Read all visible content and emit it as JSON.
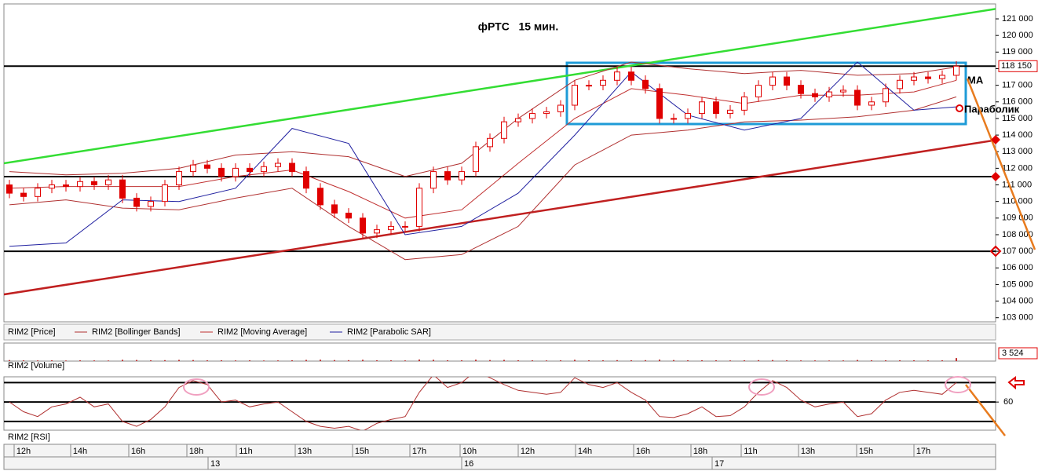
{
  "chart_data": {
    "type": "candlestick",
    "title": "фРТС   15 мин.",
    "annotations": [
      "МА",
      "Параболик"
    ],
    "ylim": [
      102750,
      121900
    ],
    "yticks": [
      {
        "value": 103000,
        "label": "103 000"
      },
      {
        "value": 104000,
        "label": "104 000"
      },
      {
        "value": 105000,
        "label": "105 000"
      },
      {
        "value": 106000,
        "label": "106 000"
      },
      {
        "value": 107000,
        "label": "107 000"
      },
      {
        "value": 108000,
        "label": "108 000"
      },
      {
        "value": 109000,
        "label": "109 000"
      },
      {
        "value": 110000,
        "label": "110 000"
      },
      {
        "value": 111000,
        "label": "111 000"
      },
      {
        "value": 112000,
        "label": "112 000"
      },
      {
        "value": 113000,
        "label": "113 000"
      },
      {
        "value": 114000,
        "label": "114 000"
      },
      {
        "value": 115000,
        "label": "115 000"
      },
      {
        "value": 116000,
        "label": "116 000"
      },
      {
        "value": 117000,
        "label": "117 000"
      },
      {
        "value": 118000,
        "label": "118 000"
      },
      {
        "value": 119000,
        "label": "119 000"
      },
      {
        "value": 120000,
        "label": "120 000"
      },
      {
        "value": 121000,
        "label": "121 000"
      }
    ],
    "last_price": {
      "value": 118150,
      "label": "118 150"
    },
    "ohlc": {
      "name": "RIM2 [Price]",
      "color": "#e00000",
      "open": [
        111000,
        110500,
        110300,
        110800,
        111000,
        110900,
        111200,
        111000,
        111300,
        110200,
        109700,
        110000,
        111000,
        111800,
        112200,
        112000,
        111500,
        112000,
        111800,
        112100,
        112300,
        111800,
        110800,
        109800,
        109300,
        109000,
        108100,
        108300,
        108500,
        108500,
        110800,
        111800,
        111300,
        111800,
        113300,
        113800,
        114800,
        115000,
        115300,
        115400,
        115800,
        117000,
        117000,
        117300,
        117800,
        117300,
        116800,
        115000,
        115000,
        115300,
        116000,
        115300,
        115500,
        116300,
        117000,
        117500,
        117000,
        116500,
        116300,
        116600,
        116700,
        115800,
        116000,
        116800,
        117300,
        117500,
        117400,
        117600
      ],
      "high": [
        111300,
        110800,
        111100,
        111300,
        111300,
        111500,
        111500,
        111600,
        111600,
        110500,
        110300,
        111300,
        112100,
        112500,
        112500,
        112300,
        112300,
        112300,
        112400,
        112600,
        112600,
        112100,
        111100,
        110100,
        109600,
        109300,
        108600,
        108800,
        108800,
        111100,
        112100,
        112100,
        112100,
        113600,
        114100,
        115100,
        115300,
        115600,
        115700,
        116100,
        117300,
        117300,
        117600,
        118100,
        118100,
        117600,
        117100,
        115300,
        115600,
        116300,
        116300,
        115800,
        116600,
        117300,
        117800,
        117800,
        117300,
        116800,
        116900,
        117000,
        117000,
        116300,
        117100,
        117600,
        117800,
        117800,
        117900,
        118450
      ],
      "low": [
        110200,
        110000,
        110000,
        110500,
        110600,
        110600,
        110700,
        110700,
        109900,
        109400,
        109400,
        109700,
        110700,
        111500,
        111700,
        111200,
        111200,
        111500,
        111500,
        111800,
        111500,
        110500,
        109500,
        109000,
        108700,
        107800,
        107800,
        108000,
        108200,
        108200,
        110500,
        111000,
        111000,
        111500,
        113000,
        113500,
        114500,
        114700,
        115000,
        115100,
        115500,
        116700,
        116700,
        117000,
        117000,
        116500,
        114700,
        114700,
        114700,
        115000,
        115000,
        115000,
        115200,
        116000,
        116700,
        116700,
        116200,
        116000,
        116000,
        116300,
        115500,
        115500,
        115700,
        116500,
        117000,
        117100,
        117100,
        117300
      ],
      "close": [
        110500,
        110300,
        110800,
        111000,
        110900,
        111200,
        111000,
        111300,
        110200,
        109700,
        110000,
        111000,
        111800,
        112200,
        112000,
        111500,
        112000,
        111800,
        112100,
        112300,
        111800,
        110800,
        109800,
        109300,
        109000,
        108100,
        108300,
        108500,
        108500,
        110800,
        111800,
        111300,
        111800,
        113300,
        113800,
        114800,
        115000,
        115300,
        115400,
        115800,
        117000,
        117000,
        117300,
        117800,
        117300,
        116800,
        115000,
        115000,
        115300,
        116000,
        115300,
        115500,
        116300,
        117000,
        117500,
        117000,
        116500,
        116300,
        116600,
        116700,
        115800,
        116000,
        116800,
        117300,
        117500,
        117400,
        117600,
        118150
      ]
    },
    "overlay_x": [
      0,
      4,
      8,
      12,
      16,
      20,
      24,
      28,
      32,
      36,
      40,
      44,
      48,
      52,
      56,
      60,
      64,
      67
    ],
    "series": [
      {
        "name": "RIM2 [Bollinger Bands]",
        "color": "#b03030",
        "upper": [
          111800,
          111600,
          111700,
          112000,
          112800,
          113000,
          112700,
          111500,
          112300,
          115000,
          117300,
          118400,
          118000,
          117700,
          117900,
          117600,
          117700,
          118100
        ],
        "lower": [
          109800,
          110100,
          109600,
          109500,
          110200,
          110800,
          108500,
          106500,
          106800,
          108500,
          112200,
          114000,
          114300,
          114800,
          114900,
          115100,
          115500,
          116300
        ]
      },
      {
        "name": "RIM2 [Moving Average]",
        "color": "#c03030",
        "values": [
          110800,
          110900,
          110900,
          110900,
          111500,
          111900,
          110600,
          109000,
          109500,
          112300,
          115000,
          116800,
          116400,
          115900,
          116400,
          116400,
          116600,
          117300
        ]
      },
      {
        "name": "RIM2 [Parabolic SAR]",
        "color": "#2020a0",
        "values": [
          107300,
          107500,
          110100,
          110000,
          110800,
          114400,
          113500,
          108000,
          108500,
          110500,
          114000,
          117800,
          115200,
          114300,
          115000,
          118400,
          115500,
          115700
        ]
      }
    ],
    "levels": [
      118150,
      111500,
      107000
    ],
    "trendlines": [
      {
        "color": "#33dd33",
        "x": [
          -0.4,
          69.8
        ],
        "values": [
          112300,
          121600
        ]
      },
      {
        "color": "#c02020",
        "x": [
          -0.4,
          69.8
        ],
        "values": [
          104400,
          113700
        ]
      }
    ],
    "volume": {
      "name": "RIM2 [Volume]",
      "ylim": [
        0,
        20000
      ],
      "last": {
        "value": 3524,
        "label": "3 524"
      },
      "values": [
        1200,
        900,
        800,
        1000,
        700,
        900,
        800,
        700,
        1500,
        1300,
        900,
        1100,
        1400,
        1200,
        900,
        1000,
        800,
        900,
        700,
        800,
        1000,
        1400,
        1600,
        1200,
        1100,
        1500,
        1000,
        900,
        800,
        1800,
        1500,
        1000,
        900,
        1600,
        1200,
        1400,
        1000,
        900,
        800,
        900,
        1500,
        1000,
        900,
        1100,
        1000,
        1100,
        1700,
        1200,
        900,
        1000,
        1000,
        800,
        900,
        1100,
        1200,
        900,
        800,
        800,
        700,
        800,
        1300,
        900,
        1000,
        1000,
        900,
        800,
        900,
        3524
      ]
    },
    "rsi": {
      "name": "RIM2 [RSI]",
      "ylim": [
        31,
        86
      ],
      "yticks": [
        60
      ],
      "levels": [
        80,
        60,
        40
      ],
      "values": [
        60,
        50,
        45,
        55,
        58,
        65,
        55,
        58,
        40,
        35,
        42,
        55,
        75,
        82,
        78,
        60,
        62,
        55,
        58,
        60,
        50,
        40,
        35,
        33,
        35,
        30,
        38,
        42,
        45,
        70,
        88,
        75,
        80,
        92,
        85,
        78,
        72,
        70,
        68,
        70,
        85,
        78,
        75,
        80,
        70,
        62,
        45,
        44,
        48,
        55,
        45,
        46,
        55,
        70,
        82,
        75,
        62,
        55,
        58,
        60,
        45,
        48,
        62,
        70,
        72,
        70,
        68,
        80
      ]
    },
    "xtick_labels": [
      "12h",
      "14h",
      "16h",
      "18h",
      "11h",
      "13h",
      "15h",
      "17h",
      "10h",
      "12h",
      "14h",
      "16h",
      "18h",
      "11h",
      "13h",
      "15h",
      "17h"
    ],
    "day_labels": [
      "13",
      "16",
      "17"
    ]
  }
}
